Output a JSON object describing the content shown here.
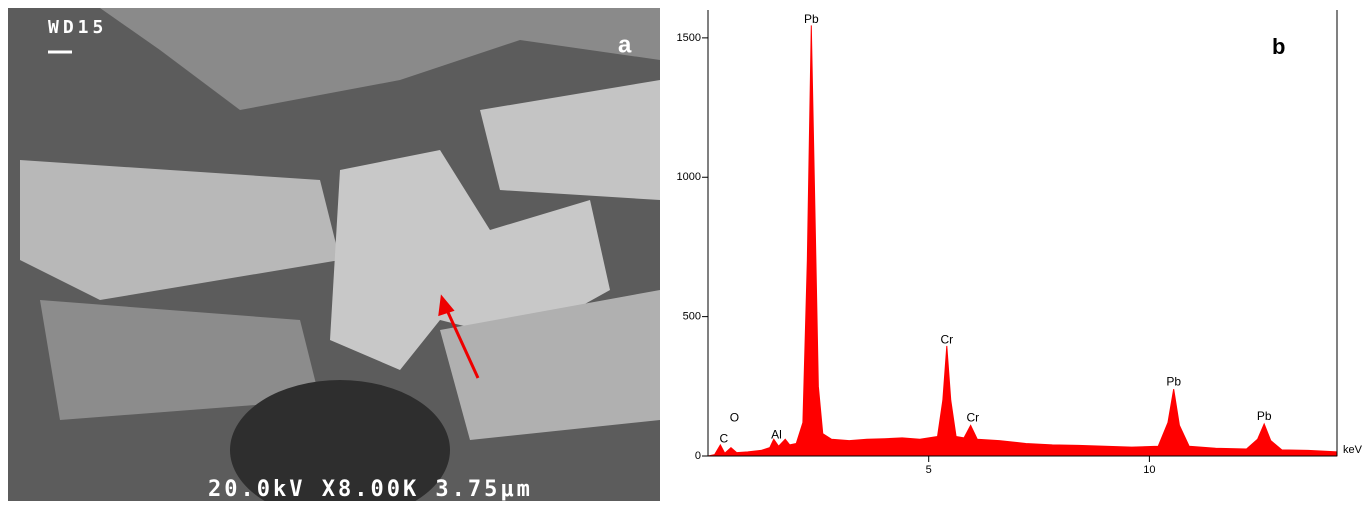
{
  "image_panel": {
    "info": "WD15",
    "label": "a",
    "footer": "20.0kV X8.00K 3.75μm"
  },
  "chart_data": {
    "type": "area",
    "panel_label": "b",
    "x_label": "keV",
    "color": "#ff0000",
    "x": [
      0.0,
      0.15,
      0.28,
      0.38,
      0.52,
      0.65,
      0.9,
      1.2,
      1.4,
      1.49,
      1.6,
      1.75,
      1.85,
      2.0,
      2.15,
      2.25,
      2.34,
      2.42,
      2.5,
      2.6,
      2.8,
      3.2,
      3.6,
      4.0,
      4.4,
      4.8,
      5.2,
      5.32,
      5.41,
      5.5,
      5.62,
      5.8,
      5.95,
      6.1,
      6.6,
      7.2,
      7.8,
      8.4,
      9.0,
      9.6,
      10.2,
      10.42,
      10.55,
      10.68,
      10.9,
      11.5,
      12.2,
      12.45,
      12.6,
      12.75,
      13.0,
      13.6,
      14.25
    ],
    "values": [
      0,
      5,
      40,
      10,
      30,
      12,
      15,
      20,
      30,
      60,
      35,
      60,
      40,
      45,
      120,
      700,
      1545,
      900,
      250,
      80,
      60,
      55,
      60,
      62,
      65,
      60,
      70,
      200,
      395,
      200,
      70,
      65,
      110,
      60,
      55,
      45,
      40,
      38,
      35,
      32,
      35,
      120,
      240,
      110,
      35,
      28,
      25,
      60,
      115,
      55,
      22,
      20,
      15
    ],
    "annotations": [
      {
        "text": "C",
        "x": 0.36,
        "y": 60
      },
      {
        "text": "O",
        "x": 0.6,
        "y": 135
      },
      {
        "text": "Al",
        "x": 1.55,
        "y": 75
      },
      {
        "text": "Pb",
        "x": 2.34,
        "y": 1565
      },
      {
        "text": "Cr",
        "x": 5.41,
        "y": 415
      },
      {
        "text": "Cr",
        "x": 6.0,
        "y": 135
      },
      {
        "text": "Pb",
        "x": 10.55,
        "y": 265
      },
      {
        "text": "Pb",
        "x": 12.6,
        "y": 140
      }
    ],
    "xlim": [
      0,
      14.25
    ],
    "xticks": [
      5,
      10
    ],
    "ylim": [
      0,
      1600
    ],
    "yticks": [
      0,
      500,
      1000,
      1500
    ]
  }
}
